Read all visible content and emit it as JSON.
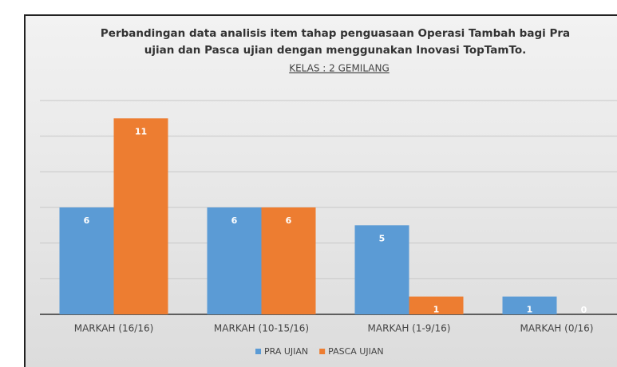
{
  "chart_data": {
    "type": "bar",
    "title": [
      "Perbandingan data analisis item tahap penguasaan Operasi Tambah bagi Pra",
      "ujian dan Pasca ujian dengan menggunakan Inovasi TopTamTo."
    ],
    "subtitle": "KELAS : 2 GEMILANG",
    "categories": [
      "MARKAH (16/16)",
      "MARKAH (10-15/16)",
      "MARKAH (1-9/16)",
      "MARKAH (0/16)"
    ],
    "series": [
      {
        "name": "PRA UJIAN",
        "color": "#5b9bd5",
        "values": [
          6,
          6,
          5,
          1
        ]
      },
      {
        "name": "PASCA UJIAN",
        "color": "#ed7d31",
        "values": [
          11,
          6,
          1,
          0
        ]
      }
    ],
    "ylim": [
      0,
      12
    ],
    "yticks": [
      0,
      2,
      4,
      6,
      8,
      10,
      12
    ],
    "grid": true,
    "legend": "bottom"
  }
}
